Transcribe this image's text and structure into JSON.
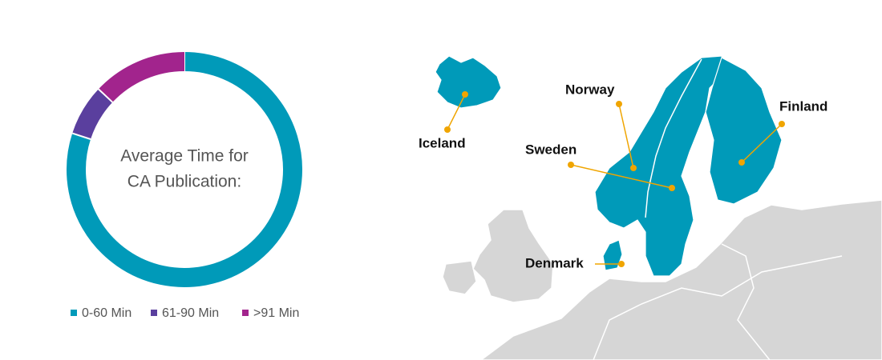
{
  "chart_data": {
    "type": "pie",
    "center_label": [
      "Average Time for",
      "CA Publication:"
    ],
    "categories": [
      "0-60 Min",
      "61-90 Min",
      ">91 Min"
    ],
    "values": [
      80,
      7,
      13
    ],
    "colors": [
      "#009ab9",
      "#5a3f9e",
      "#a2248d"
    ]
  },
  "map": {
    "countries": [
      "Iceland",
      "Norway",
      "Sweden",
      "Finland",
      "Denmark"
    ]
  }
}
